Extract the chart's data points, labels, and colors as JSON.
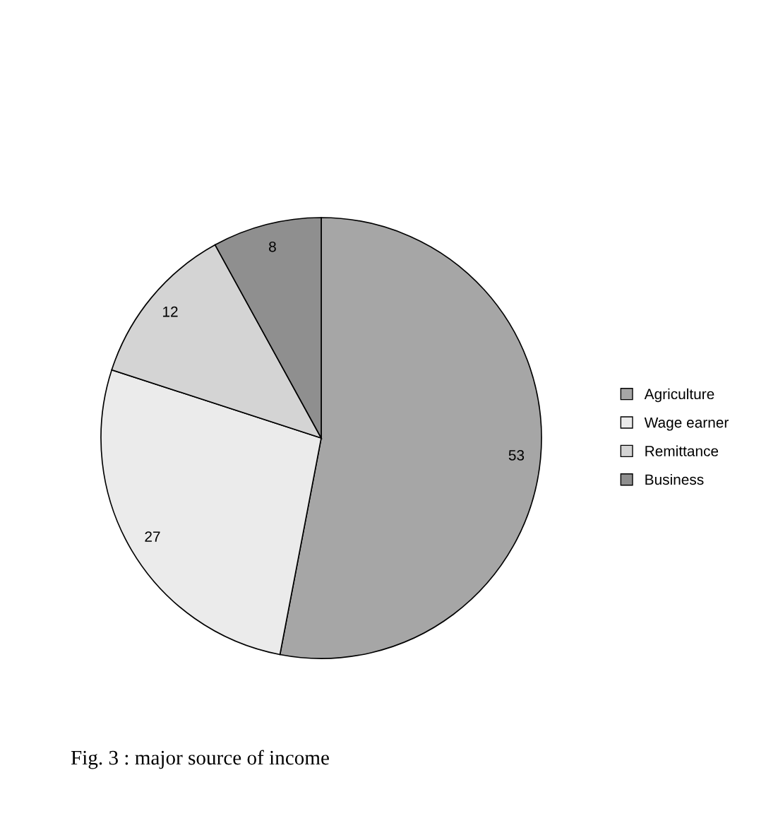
{
  "chart_data": {
    "type": "pie",
    "title": "Fig. 3 : major source of income",
    "categories": [
      "Agriculture",
      "Wage earner",
      "Remittance",
      "Business"
    ],
    "values": [
      53,
      27,
      12,
      8
    ],
    "colors": [
      "#a6a6a6",
      "#ebebeb",
      "#d4d4d4",
      "#8f8f8f"
    ],
    "data_labels": true,
    "legend": "right"
  }
}
